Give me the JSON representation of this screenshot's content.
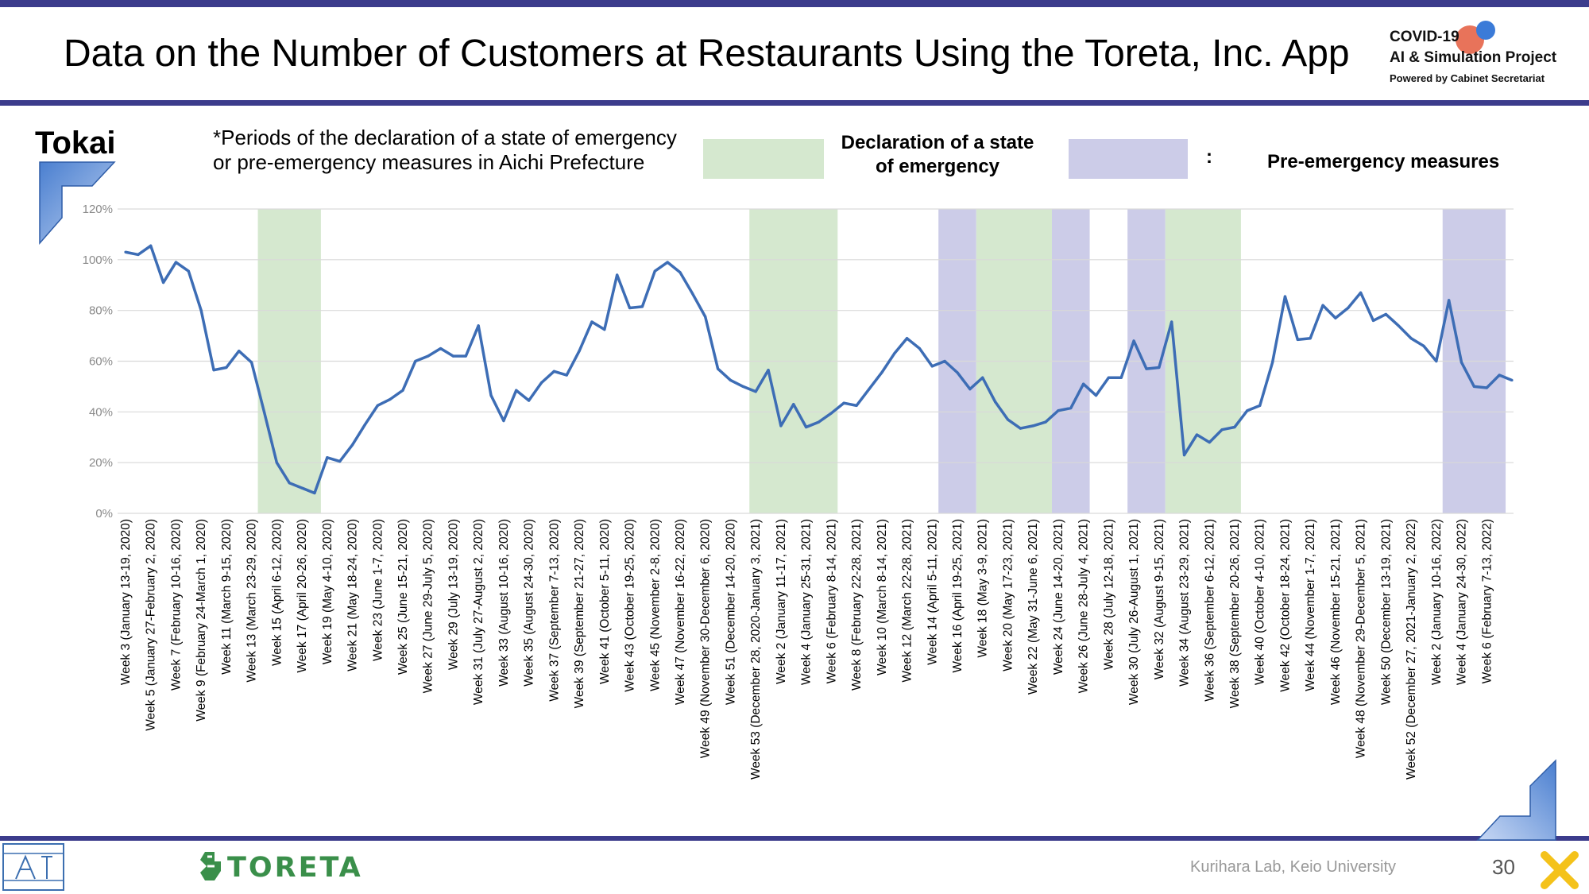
{
  "slide": {
    "title": "Data on the Number of Customers at Restaurants Using the Toreta, Inc. App",
    "region": "Tokai",
    "note": "*Periods of the declaration of a state of emergency or pre-emergency measures in Aichi Prefecture",
    "legend": {
      "emergency_label": "Declaration of a state of emergency",
      "colon": ":",
      "pre_emergency_label": "Pre-emergency measures"
    },
    "logo": {
      "line1": "COVID-19",
      "line2": "AI & Simulation Project",
      "line3": "Powered by Cabinet Secretariat"
    },
    "footer": {
      "lab": "Kurihara Lab, Keio University",
      "page": "30",
      "toreta": "TORETA"
    },
    "colors": {
      "line": "#3d6db5",
      "emergency": "#d5e8cf",
      "pre_emergency": "#cccce8",
      "frame": "#3c3c8c"
    }
  },
  "chart_data": {
    "type": "line",
    "y_ticks": [
      "0%",
      "20%",
      "40%",
      "60%",
      "80%",
      "100%",
      "120%"
    ],
    "ylim": [
      0,
      120
    ],
    "grid": true,
    "x_labels": [
      "Week 3 (January 13-19, 2020)",
      "Week 5 (January 27-February 2, 2020)",
      "Week 7 (February 10-16, 2020)",
      "Week 9 (February 24-March 1, 2020)",
      "Week 11 (March 9-15, 2020)",
      "Week 13 (March 23-29, 2020)",
      "Week 15 (April 6-12, 2020)",
      "Week 17 (April 20-26, 2020)",
      "Week 19 (May 4-10, 2020)",
      "Week 21 (May 18-24, 2020)",
      "Week 23 (June 1-7, 2020)",
      "Week 25 (June 15-21, 2020)",
      "Week 27 (June 29-July 5, 2020)",
      "Week 29 (July 13-19, 2020)",
      "Week 31 (July 27-August 2, 2020)",
      "Week 33 (August 10-16, 2020)",
      "Week 35 (August 24-30, 2020)",
      "Week 37 (September 7-13, 2020)",
      "Week 39 (September 21-27, 2020)",
      "Week 41 (October 5-11, 2020)",
      "Week 43 (October 19-25, 2020)",
      "Week 45 (November 2-8, 2020)",
      "Week 47 (November 16-22, 2020)",
      "Week 49 (November 30-December 6, 2020)",
      "Week 51 (December 14-20, 2020)",
      "Week 53 (December 28, 2020-January 3, 2021)",
      "Week 2 (January 11-17, 2021)",
      "Week 4 (January 25-31, 2021)",
      "Week 6 (February 8-14, 2021)",
      "Week 8 (February 22-28, 2021)",
      "Week 10 (March 8-14, 2021)",
      "Week 12 (March 22-28, 2021)",
      "Week 14 (April 5-11, 2021)",
      "Week 16 (April 19-25, 2021)",
      "Week 18 (May 3-9, 2021)",
      "Week 20 (May 17-23, 2021)",
      "Week 22 (May 31-June 6, 2021)",
      "Week 24 (June 14-20, 2021)",
      "Week 26 (June 28-July 4, 2021)",
      "Week 28 (July 12-18, 2021)",
      "Week 30 (July 26-August 1, 2021)",
      "Week 32 (August 9-15, 2021)",
      "Week 34 (August 23-29, 2021)",
      "Week 36 (September 6-12, 2021)",
      "Week 38 (September 20-26, 2021)",
      "Week 40 (October 4-10, 2021)",
      "Week 42 (October 18-24, 2021)",
      "Week 44 (November 1-7, 2021)",
      "Week 46 (November 15-21, 2021)",
      "Week 48 (November 29-December 5, 2021)",
      "Week 50 (December 13-19, 2021)",
      "Week 52 (December 27, 2021-January 2, 2022)",
      "Week 2 (January 10-16, 2022)",
      "Week 4 (January 24-30, 2022)",
      "Week 6 (February 7-13, 2022)"
    ],
    "series": [
      {
        "values": [
          103,
          102,
          105.5,
          91,
          99,
          95.5,
          80,
          56.5,
          57.5,
          64,
          59.5,
          40,
          20,
          12,
          10,
          8,
          22,
          20.5,
          27,
          35,
          42.5,
          45,
          48.5,
          60,
          62,
          65,
          62,
          62,
          74,
          46.5,
          36.5,
          48.5,
          44.5,
          51.5,
          56,
          54.5,
          64,
          75.5,
          72.5,
          94,
          81,
          81.5,
          95.5,
          99,
          95,
          86.5,
          77.5,
          57,
          52.5,
          50,
          48,
          56.5,
          34.5,
          43,
          34,
          36,
          39.5,
          43.5,
          42.5,
          49,
          55.5,
          63,
          69,
          65,
          58,
          60,
          55.5,
          49,
          53.5,
          44,
          37,
          33.5,
          34.5,
          36,
          40.5,
          41.5,
          51,
          46.5,
          53.5,
          53.5,
          68,
          57,
          57.5,
          75.5,
          23,
          31,
          28,
          33,
          34,
          40.5,
          42.5,
          59.5,
          85.5,
          68.5,
          69,
          82,
          77,
          81,
          87,
          76,
          78.5,
          74,
          69,
          66,
          60,
          84,
          59.5,
          50,
          49.5,
          54.5,
          52.5
        ]
      }
    ],
    "periods": [
      {
        "type": "emergency",
        "start": 10.5,
        "end": 15.5
      },
      {
        "type": "emergency",
        "start": 49.5,
        "end": 56.5
      },
      {
        "type": "pre_emergency",
        "start": 64.5,
        "end": 67.5
      },
      {
        "type": "emergency",
        "start": 67.5,
        "end": 73.5
      },
      {
        "type": "pre_emergency",
        "start": 73.5,
        "end": 76.5
      },
      {
        "type": "pre_emergency",
        "start": 79.5,
        "end": 82.5
      },
      {
        "type": "emergency",
        "start": 82.5,
        "end": 88.5
      },
      {
        "type": "pre_emergency",
        "start": 104.5,
        "end": 109.5
      }
    ]
  }
}
